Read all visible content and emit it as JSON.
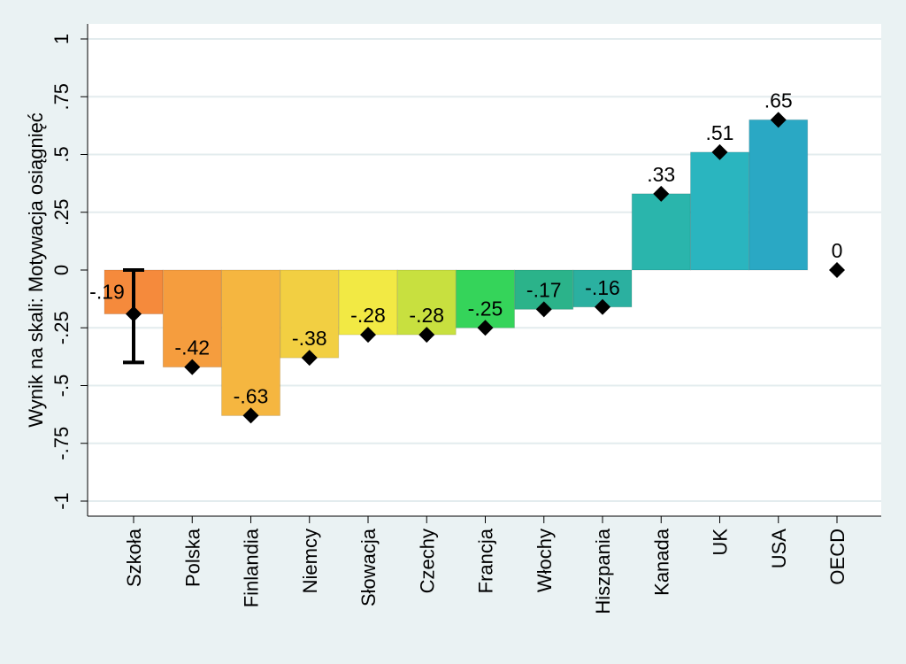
{
  "chart_data": {
    "type": "bar",
    "title": "",
    "xlabel": "",
    "ylabel": "Wynik na skali: Motywacja osiągnięć",
    "ylim": [
      -1,
      1
    ],
    "yticks": [
      {
        "value": 1,
        "label": "1"
      },
      {
        "value": 0.75,
        "label": ".75"
      },
      {
        "value": 0.5,
        "label": ".5"
      },
      {
        "value": 0.25,
        "label": ".25"
      },
      {
        "value": 0,
        "label": "0"
      },
      {
        "value": -0.25,
        "label": "-.25"
      },
      {
        "value": -0.5,
        "label": "-.5"
      },
      {
        "value": -0.75,
        "label": "-.75"
      },
      {
        "value": -1,
        "label": "-1"
      }
    ],
    "grid": true,
    "legend": "none",
    "categories": [
      "Szkoła",
      "Polska",
      "Finlandia",
      "Niemcy",
      "Słowacja",
      "Czechy",
      "Francja",
      "Włochy",
      "Hiszpania",
      "Kanada",
      "UK",
      "USA",
      "OECD"
    ],
    "values": [
      -0.19,
      -0.42,
      -0.63,
      -0.38,
      -0.28,
      -0.28,
      -0.25,
      -0.17,
      -0.16,
      0.33,
      0.51,
      0.65,
      0
    ],
    "value_labels": [
      "-.19",
      "-.42",
      "-.63",
      "-.38",
      "-.28",
      "-.28",
      "-.25",
      "-.17",
      "-.16",
      ".33",
      ".51",
      ".65",
      "0"
    ],
    "has_bar": [
      true,
      true,
      true,
      true,
      true,
      true,
      true,
      true,
      true,
      true,
      true,
      true,
      false
    ],
    "bar_colors": [
      "#f58a3c",
      "#f59d3e",
      "#f5b640",
      "#f2cf42",
      "#f2e944",
      "#c8e03f",
      "#35d45a",
      "#2bb38a",
      "#2bb0a0",
      "#2ab5ac",
      "#2ab5bf",
      "#2aa8c4",
      "#ffffff"
    ],
    "error_bar": {
      "category": "Szkoła",
      "low": -0.4,
      "high": 0.0
    },
    "marker": "diamond"
  }
}
